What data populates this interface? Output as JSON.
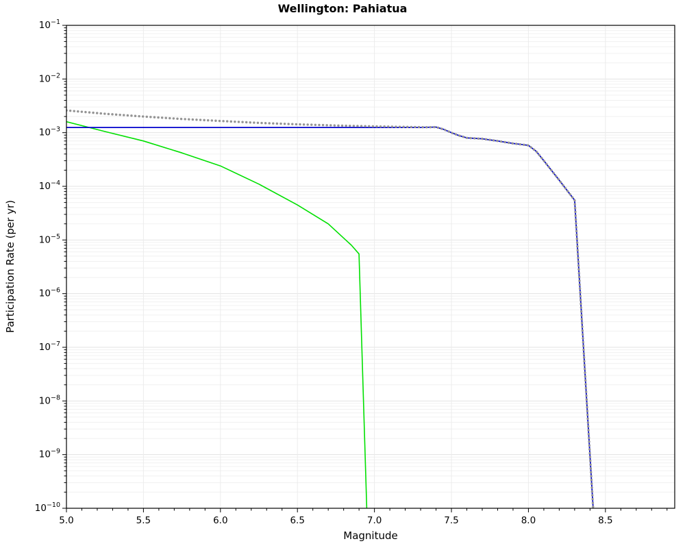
{
  "chart_data": {
    "type": "line",
    "title": "Wellington: Pahiatua",
    "xlabel": "Magnitude",
    "ylabel": "Participation Rate (per yr)",
    "xlim": [
      5.0,
      8.95
    ],
    "ylim": [
      1e-10,
      0.1
    ],
    "ylim_exponents": [
      -10,
      -1
    ],
    "x_ticks": [
      5.0,
      5.5,
      6.0,
      6.5,
      7.0,
      7.5,
      8.0,
      8.5
    ],
    "y_tick_exponents": [
      -1,
      -2,
      -3,
      -4,
      -5,
      -6,
      -7,
      -8,
      -9,
      -10
    ],
    "grid": true,
    "legend": null,
    "background": "#ffffff",
    "series": [
      {
        "name": "green-line",
        "color": "#00e000",
        "style": "solid",
        "width": 1.6,
        "x": [
          5.0,
          5.25,
          5.5,
          5.75,
          6.0,
          6.25,
          6.5,
          6.7,
          6.85,
          6.9,
          6.95
        ],
        "y": [
          0.0016,
          0.00105,
          0.0007,
          0.00042,
          0.00024,
          0.00011,
          4.5e-05,
          2e-05,
          8e-06,
          5.5e-06,
          1e-10
        ]
      },
      {
        "name": "blue-line",
        "color": "#0000cc",
        "style": "solid",
        "width": 1.8,
        "x": [
          5.0,
          7.0,
          7.3,
          7.4,
          7.45,
          7.5,
          7.55,
          7.6,
          7.7,
          7.8,
          7.9,
          8.0,
          8.05,
          8.1,
          8.2,
          8.3,
          8.42
        ],
        "y": [
          0.00125,
          0.00125,
          0.00125,
          0.00127,
          0.00115,
          0.001,
          0.00088,
          0.0008,
          0.00077,
          0.0007,
          0.00063,
          0.00058,
          0.00045,
          0.0003,
          0.00013,
          5.5e-05,
          1e-10
        ]
      },
      {
        "name": "gray-dotted-line",
        "color": "#949494",
        "style": "dotted",
        "width": 3.4,
        "x": [
          5.0,
          5.25,
          5.5,
          5.75,
          6.0,
          6.25,
          6.5,
          6.75,
          7.0,
          7.2,
          7.35,
          7.4,
          7.45,
          7.5,
          7.55,
          7.6,
          7.7,
          7.8,
          7.9,
          8.0,
          8.05,
          8.1,
          8.2,
          8.3,
          8.42
        ],
        "y": [
          0.0026,
          0.00225,
          0.002,
          0.0018,
          0.00165,
          0.00152,
          0.00143,
          0.00136,
          0.00131,
          0.00128,
          0.00126,
          0.00127,
          0.00115,
          0.001,
          0.00088,
          0.0008,
          0.00077,
          0.0007,
          0.00063,
          0.00058,
          0.00045,
          0.0003,
          0.00013,
          5.5e-05,
          1e-10
        ]
      }
    ]
  }
}
